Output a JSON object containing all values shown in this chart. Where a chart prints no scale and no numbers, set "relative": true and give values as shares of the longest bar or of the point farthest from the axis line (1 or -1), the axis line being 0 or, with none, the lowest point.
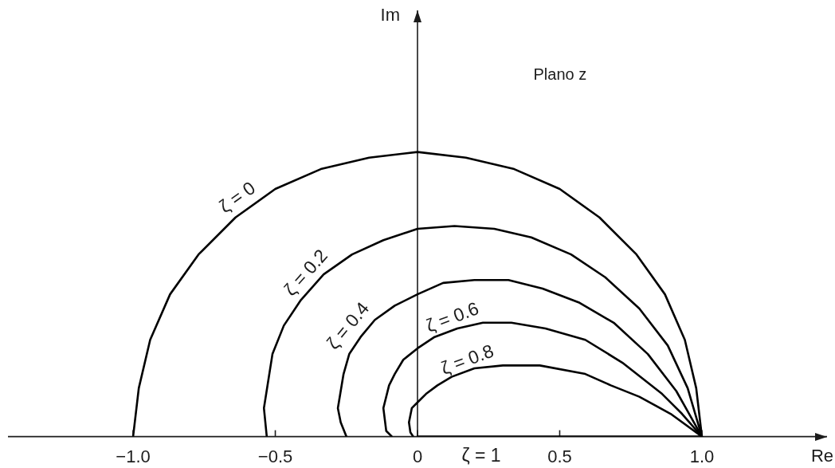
{
  "chart_data": {
    "type": "line",
    "xlabel": "Re",
    "annotations": [
      "Im",
      "Plano z"
    ],
    "relative": true,
    "line_style": "solid",
    "xlim": [
      -1.44,
      1.44
    ],
    "xticks": [
      {
        "value": -1,
        "label": "−1.0"
      },
      {
        "value": -0.5,
        "label": "−0.5"
      },
      0,
      0.5,
      {
        "value": 1,
        "label": "1.0"
      }
    ],
    "series": [
      {
        "name": "ζ = 0",
        "color": "#000000",
        "x": [
          1,
          0.98,
          0.94,
          0.87,
          0.77,
          0.64,
          0.5,
          0.34,
          0.17,
          0,
          -0.17,
          -0.34,
          -0.5,
          -0.64,
          -0.77,
          -0.87,
          -0.94,
          -0.98,
          -1
        ],
        "values": [
          0,
          0.17,
          0.34,
          0.5,
          0.64,
          0.77,
          0.87,
          0.94,
          0.98,
          1,
          0.98,
          0.94,
          0.87,
          0.77,
          0.64,
          0.5,
          0.34,
          0.17,
          0
        ]
      },
      {
        "name": "ζ = 0.2",
        "color": "#000000",
        "x": [
          1,
          0.95,
          0.88,
          0.78,
          0.66,
          0.54,
          0.4,
          0.27,
          0.13,
          0,
          -0.12,
          -0.23,
          -0.33,
          -0.41,
          -0.47,
          -0.51,
          -0.54,
          -0.53
        ],
        "values": [
          0,
          0.17,
          0.32,
          0.45,
          0.56,
          0.64,
          0.7,
          0.73,
          0.74,
          0.73,
          0.69,
          0.64,
          0.57,
          0.48,
          0.39,
          0.29,
          0.1,
          0
        ]
      },
      {
        "name": "ζ = 0.4",
        "color": "#000000",
        "x": [
          1,
          0.91,
          0.81,
          0.69,
          0.57,
          0.44,
          0.32,
          0.2,
          0.09,
          0,
          -0.08,
          -0.15,
          -0.2,
          -0.24,
          -0.26,
          -0.28,
          -0.27,
          -0.25
        ],
        "values": [
          0,
          0.16,
          0.29,
          0.4,
          0.47,
          0.52,
          0.55,
          0.55,
          0.54,
          0.5,
          0.46,
          0.41,
          0.35,
          0.29,
          0.22,
          0.1,
          0.05,
          0
        ]
      },
      {
        "name": "ζ = 0.6",
        "color": "#000000",
        "x": [
          1,
          0.93,
          0.86,
          0.72,
          0.59,
          0.45,
          0.33,
          0.23,
          0.14,
          0.06,
          0,
          -0.05,
          -0.08,
          -0.1,
          -0.12,
          -0.11,
          -0.09
        ],
        "values": [
          0,
          0.08,
          0.15,
          0.26,
          0.34,
          0.38,
          0.4,
          0.4,
          0.38,
          0.35,
          0.31,
          0.27,
          0.22,
          0.18,
          0.1,
          0.02,
          0
        ]
      },
      {
        "name": "ζ = 0.8",
        "color": "#000000",
        "x": [
          1,
          0.89,
          0.78,
          0.68,
          0.59,
          0.43,
          0.3,
          0.2,
          0.12,
          0.07,
          0.03,
          0,
          -0.02,
          -0.03,
          -0.025,
          -0.015
        ],
        "values": [
          0,
          0.08,
          0.14,
          0.18,
          0.22,
          0.25,
          0.25,
          0.24,
          0.21,
          0.18,
          0.15,
          0.12,
          0.1,
          0.05,
          0.015,
          0
        ]
      },
      {
        "name": "ζ = 1",
        "color": "#000000",
        "x": [
          0,
          1
        ],
        "values": [
          0,
          0
        ]
      }
    ]
  }
}
